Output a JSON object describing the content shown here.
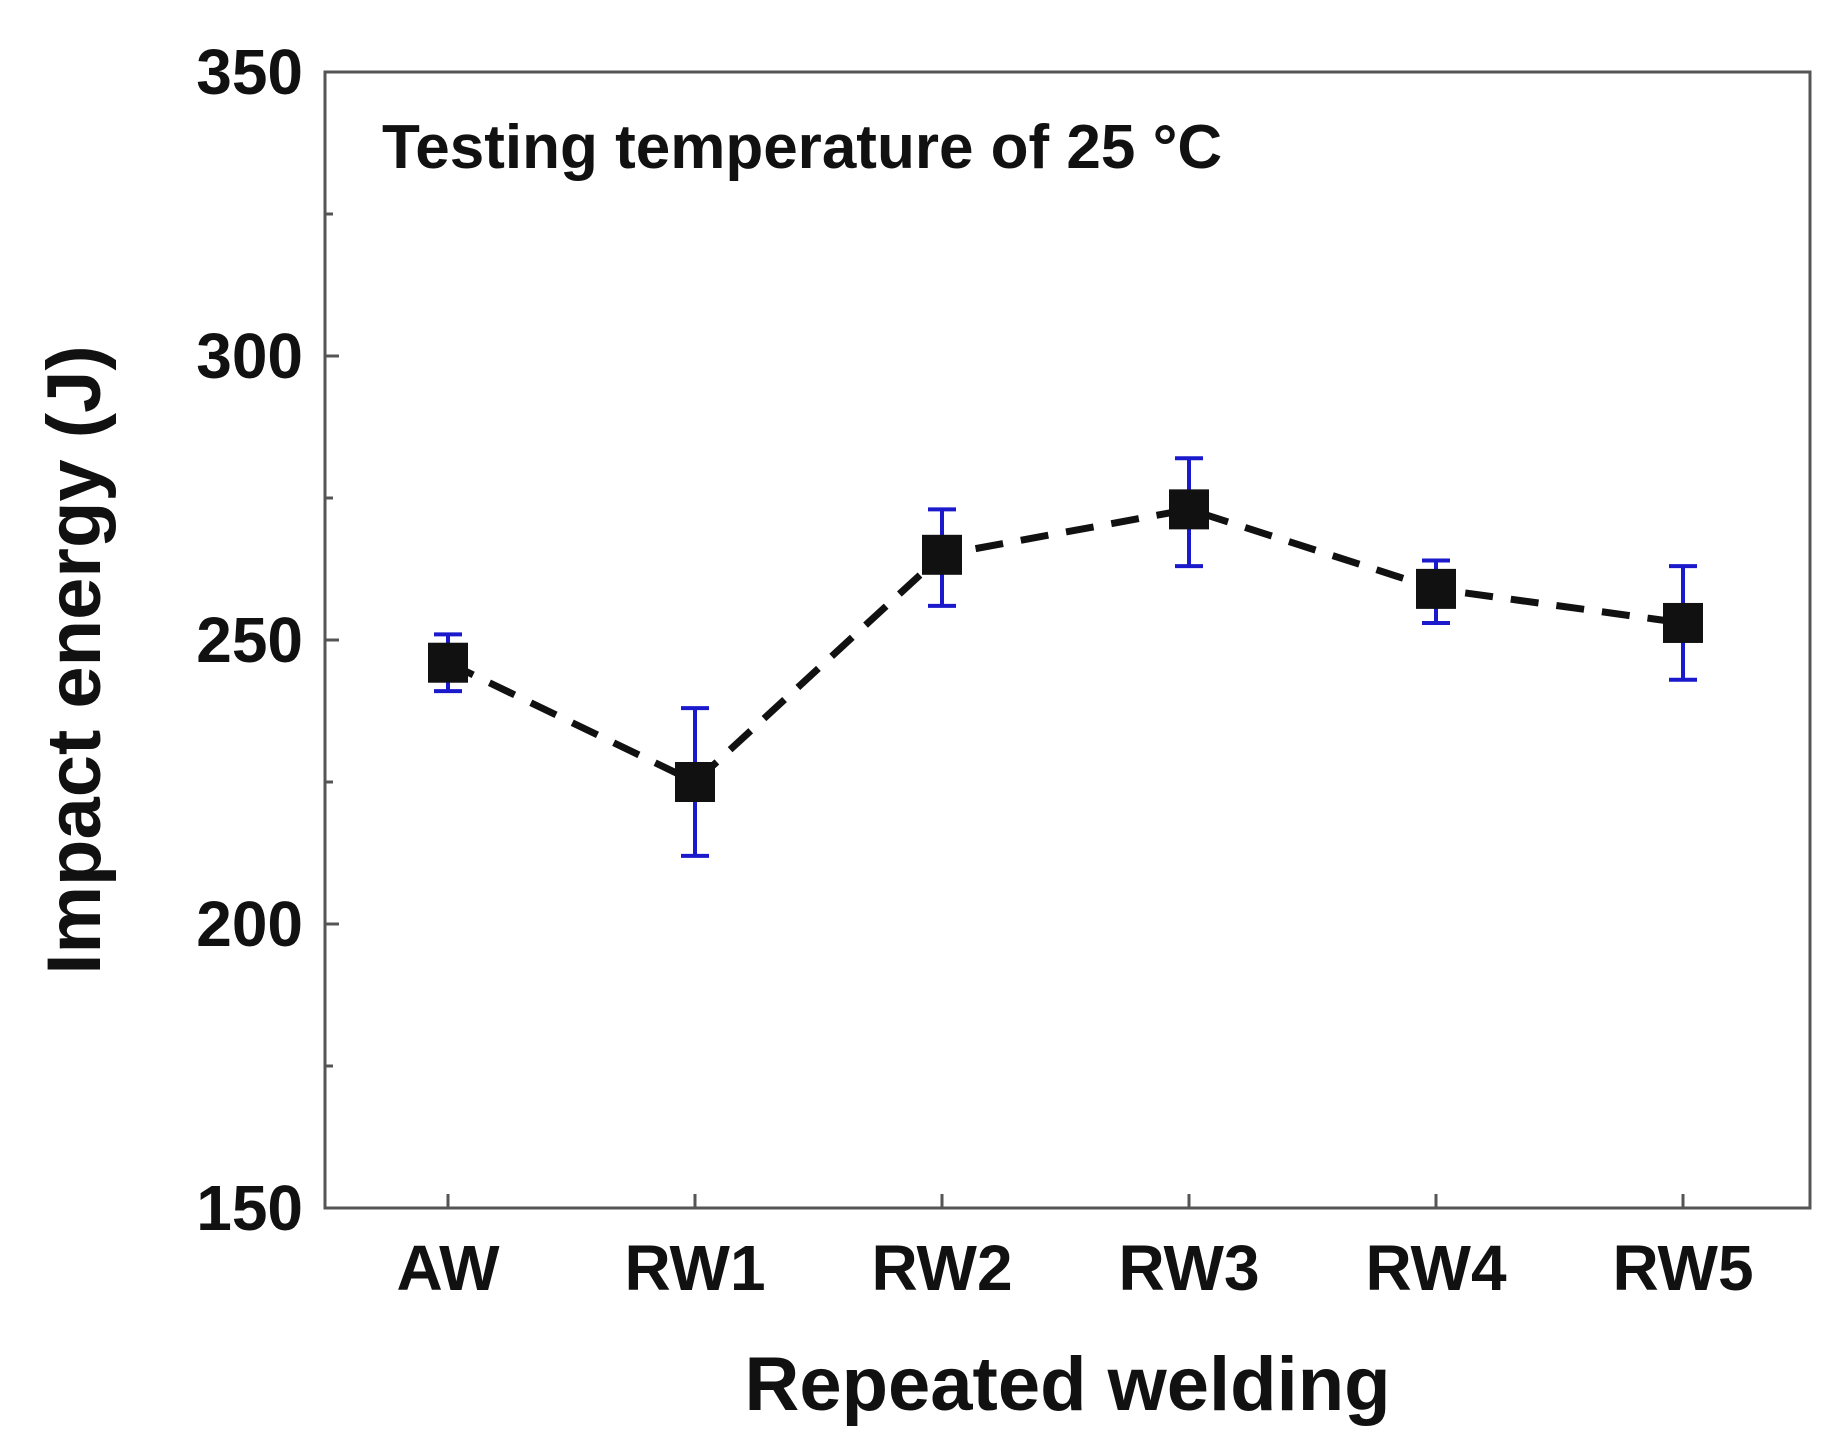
{
  "chart_data": {
    "type": "line",
    "title": "",
    "annotation": "Testing temperature of 25 °C",
    "xlabel": "Repeated welding",
    "ylabel": "Impact energy (J)",
    "categories": [
      "AW",
      "RW1",
      "RW2",
      "RW3",
      "RW4",
      "RW5"
    ],
    "series": [
      {
        "name": "Impact energy",
        "values": [
          246,
          225,
          265,
          273,
          259,
          253
        ],
        "error_low": [
          241,
          212,
          256,
          263,
          253,
          243
        ],
        "error_high": [
          251,
          238,
          273,
          282,
          264,
          263
        ],
        "line_style": "dashed",
        "marker": "square",
        "line_color": "#111111",
        "marker_color": "#111111",
        "error_color": "#1a1acc"
      }
    ],
    "ylim": [
      150,
      350
    ],
    "yticks": [
      "150",
      "200",
      "250",
      "300",
      "350"
    ],
    "y_minor_ticks": [
      175,
      225,
      275,
      325
    ],
    "grid": false,
    "legend": "none"
  }
}
